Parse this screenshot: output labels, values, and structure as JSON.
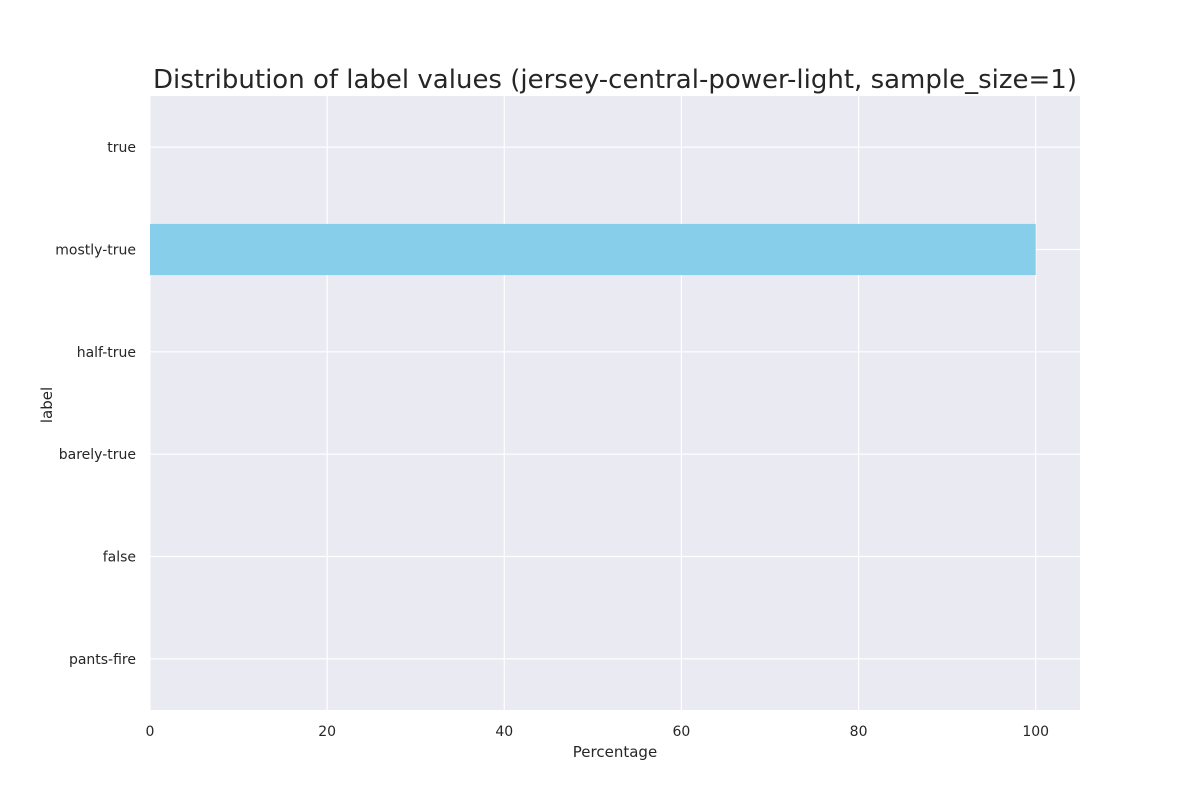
{
  "chart_data": {
    "type": "bar",
    "orientation": "horizontal",
    "title": "Distribution of label values (jersey-central-power-light, sample_size=1)",
    "xlabel": "Percentage",
    "ylabel": "label",
    "categories": [
      "true",
      "mostly-true",
      "half-true",
      "barely-true",
      "false",
      "pants-fire"
    ],
    "values": [
      0,
      100,
      0,
      0,
      0,
      0
    ],
    "xlim": [
      0,
      105
    ],
    "xticks": [
      0,
      20,
      40,
      60,
      80,
      100
    ],
    "grid": true,
    "colors": {
      "bar": "#87ceeb",
      "plot_background": "#eaeaf2",
      "grid": "#ffffff"
    }
  }
}
